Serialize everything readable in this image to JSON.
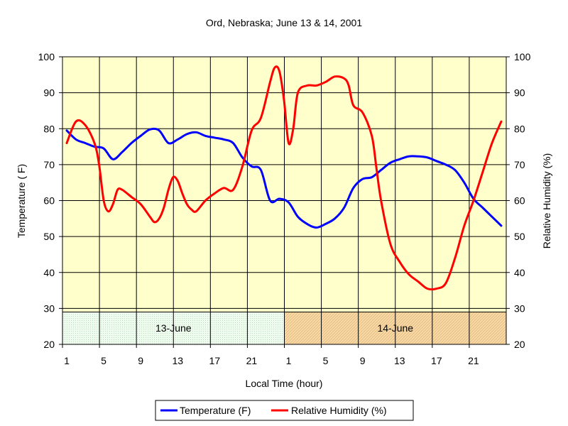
{
  "chart_data": {
    "type": "line",
    "title": "Ord, Nebraska; June 13 & 14, 2001",
    "xlabel": "Local Time (hour)",
    "ylabel_left": "Temperature ( F)",
    "ylabel_right": "Relative Humidity (%)",
    "ylim": [
      20,
      100
    ],
    "y2lim": [
      20,
      100
    ],
    "yticks": [
      20,
      30,
      40,
      50,
      60,
      70,
      80,
      90,
      100
    ],
    "xticks": [
      "1",
      "5",
      "9",
      "13",
      "17",
      "21",
      "1",
      "5",
      "9",
      "13",
      "17",
      "21"
    ],
    "x_unit": "hour index (0 = 1:00 on 13-June)",
    "xlim": [
      0,
      48
    ],
    "grid": true,
    "plot_background": "#ffffcc",
    "date_bands": [
      {
        "label": "13-June",
        "x_start": 0,
        "x_end": 24,
        "y_from": 20,
        "y_to": 29,
        "color": "#e8f8e8"
      },
      {
        "label": "14-June",
        "x_start": 24,
        "x_end": 48,
        "y_from": 20,
        "y_to": 29,
        "color": "#f5d39a"
      }
    ],
    "series": [
      {
        "name": "Temperature (F)",
        "axis": "left",
        "color": "#0000ff",
        "x": [
          0,
          1,
          2,
          3,
          4,
          5,
          6,
          7,
          8,
          9,
          10,
          11,
          12,
          13,
          14,
          15,
          16,
          17,
          18,
          19,
          20,
          21,
          22,
          23,
          24,
          25,
          26,
          27,
          28,
          29,
          30,
          31,
          32,
          33,
          34,
          35,
          36,
          37,
          38,
          39,
          40,
          41,
          42,
          43,
          44,
          45,
          46,
          47
        ],
        "values": [
          79.5,
          77,
          76,
          75,
          74.5,
          71.5,
          73.5,
          76,
          78,
          79.8,
          79.5,
          76,
          77,
          78.5,
          79,
          78,
          77.5,
          77,
          76,
          72,
          69.5,
          68.5,
          60,
          60.5,
          59.5,
          55.5,
          53.5,
          52.5,
          53.5,
          55,
          58,
          63.5,
          66,
          66.5,
          68.5,
          70.5,
          71.5,
          72.3,
          72.3,
          72,
          71,
          70,
          68.5,
          65,
          60.5,
          58,
          55.5,
          53
        ]
      },
      {
        "name": "Relative Humidity (%)",
        "axis": "right",
        "color": "#ff0000",
        "x": [
          0,
          1,
          2,
          3,
          3.5,
          4,
          4.5,
          5,
          5.5,
          6,
          7,
          8,
          9,
          9.5,
          10,
          10.5,
          11,
          11.5,
          12,
          12.5,
          13,
          13.5,
          14,
          15,
          16,
          17,
          18,
          19,
          20,
          21,
          22,
          22.5,
          23,
          23.5,
          24,
          24.5,
          25,
          26,
          27,
          28,
          29,
          30,
          30.5,
          31,
          32,
          33,
          33.5,
          34,
          35,
          36,
          37,
          38,
          39,
          40,
          41,
          42,
          43,
          44,
          45,
          46,
          47
        ],
        "values": [
          76,
          82,
          81,
          76,
          70,
          60,
          57,
          59,
          63,
          63,
          61,
          59,
          55.5,
          54,
          55,
          58,
          63,
          66.5,
          65.5,
          62,
          59,
          57.5,
          57,
          60,
          62,
          63.5,
          63,
          69.5,
          79.5,
          83,
          93,
          97,
          96,
          88,
          76,
          80,
          90,
          92,
          92,
          93,
          94.5,
          94,
          92,
          86.5,
          84.5,
          78,
          69,
          60,
          48,
          43,
          39.5,
          37.5,
          35.5,
          35.5,
          37,
          44,
          53,
          60,
          68,
          76,
          82
        ]
      }
    ],
    "legend": {
      "position": "bottom",
      "items": [
        "Temperature (F)",
        "Relative Humidity (%)"
      ]
    }
  }
}
